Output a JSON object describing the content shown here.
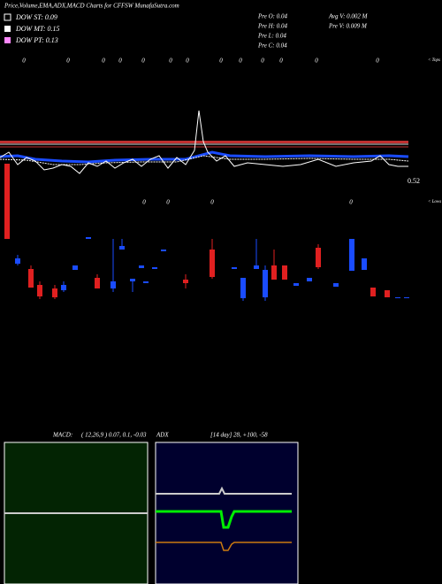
{
  "header": {
    "title": "Price,Volume,EMA,ADX,MACD Charts for CFFSW MunafaSutra.com",
    "dow": [
      "DOW ST: 0.09",
      "DOW MT: 0.15",
      "DOW PT: 0.13"
    ],
    "pre": [
      "Pre  O: 0.04",
      "Pre  H: 0.04",
      "Pre  L: 0.04",
      "Pre  C: 0.04"
    ],
    "volume": [
      "Avg V: 0.002  M",
      "Pre  V: 0.009  M"
    ]
  },
  "price_panel": {
    "tops_label": "< Tops",
    "lows_label": "< Lows",
    "last_price": "0.52",
    "zero_marker": "0"
  },
  "macd_panel": {
    "label": "MACD:",
    "params": "( 12,26,9 ) 0.07,  0.1,  -0.03"
  },
  "adx_panel": {
    "label": "ADX",
    "params": "[14  day] 28, +100, -58"
  }
}
